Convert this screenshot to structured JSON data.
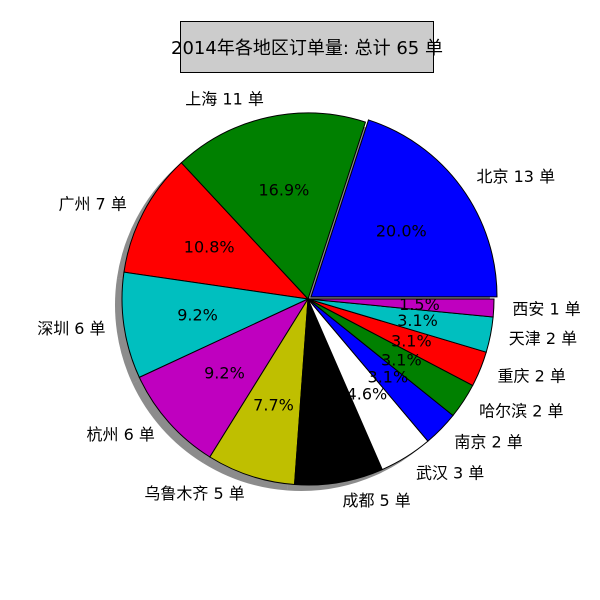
{
  "chart_data": {
    "type": "pie",
    "title": "2014年各地区订单量: 总计 65 单",
    "total": 65,
    "labels": [
      "北京 13 单",
      "上海 11 单",
      "广州 7 单",
      "深圳 6 单",
      "杭州 6 单",
      "乌鲁木齐 5 单",
      "成都 5 单",
      "武汉 3 单",
      "南京 2 单",
      "哈尔滨 2 单",
      "重庆 2 单",
      "天津 2 单",
      "西安 1 单"
    ],
    "values": [
      13,
      11,
      7,
      6,
      6,
      5,
      5,
      3,
      2,
      2,
      2,
      2,
      1
    ],
    "percent_labels": [
      "20.0%",
      "16.9%",
      "10.8%",
      "9.2%",
      "9.2%",
      "7.7%",
      "7.7%",
      "4.6%",
      "3.1%",
      "3.1%",
      "3.1%",
      "3.1%",
      "1.5%"
    ],
    "colors": [
      "#0000ff",
      "#008000",
      "#ff0000",
      "#00bfbf",
      "#bf00bf",
      "#bfbf00",
      "#000000",
      "#ffffff",
      "#0000ff",
      "#008000",
      "#ff0000",
      "#00bfbf",
      "#bf00bf"
    ],
    "explode": [
      0.02,
      0,
      0,
      0,
      0,
      0,
      0,
      0,
      0,
      0,
      0,
      0,
      0
    ],
    "shadow": true,
    "start_angle_deg": 0,
    "direction": "counterclockwise"
  }
}
